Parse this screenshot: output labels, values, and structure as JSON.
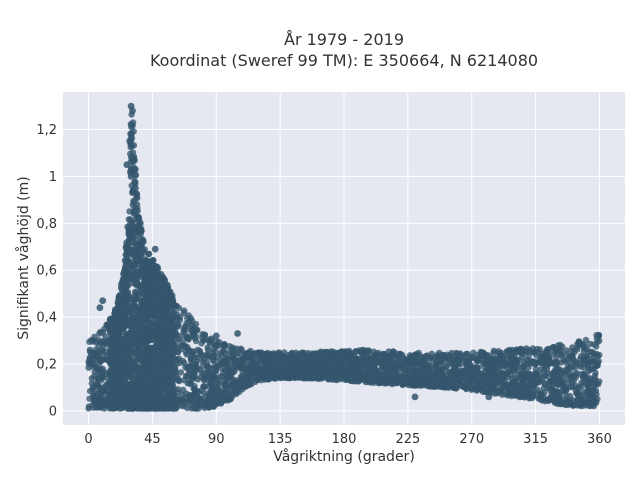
{
  "chart_data": {
    "type": "scatter",
    "title_line1": "År 1979 - 2019",
    "title_line2": "Koordinat (Sweref 99 TM): E 350664, N 6214080",
    "xlabel": "Vågriktning (grader)",
    "ylabel": "Signifikant våghöjd (m)",
    "xlim": [
      -18,
      378
    ],
    "ylim": [
      -0.06,
      1.36
    ],
    "x_ticks": [
      0,
      45,
      90,
      135,
      180,
      225,
      270,
      315,
      360
    ],
    "x_tick_labels": [
      "0",
      "45",
      "90",
      "135",
      "180",
      "225",
      "270",
      "315",
      "360"
    ],
    "y_ticks": [
      0,
      0.2,
      0.4,
      0.6,
      0.8,
      1.0,
      1.2
    ],
    "y_tick_labels": [
      "0",
      "0,2",
      "0,4",
      "0,6",
      "0,8",
      "1",
      "1,2"
    ],
    "grid": true,
    "colors": {
      "plot_bg": "#e5e8f0",
      "grid": "#ffffff",
      "marker": "#34566d"
    },
    "envelope": {
      "direction": [
        0,
        10,
        20,
        25,
        28,
        30,
        32,
        35,
        40,
        45,
        50,
        55,
        60,
        70,
        80,
        90,
        100,
        110,
        120,
        135,
        150,
        180,
        200,
        225,
        250,
        270,
        290,
        315,
        330,
        345,
        360
      ],
      "upper": [
        0.3,
        0.35,
        0.45,
        0.6,
        0.85,
        1.3,
        1.2,
        0.85,
        0.7,
        0.65,
        0.6,
        0.55,
        0.48,
        0.42,
        0.35,
        0.3,
        0.28,
        0.26,
        0.25,
        0.25,
        0.25,
        0.26,
        0.26,
        0.25,
        0.25,
        0.25,
        0.26,
        0.27,
        0.28,
        0.3,
        0.33
      ],
      "lower": [
        0.01,
        0.01,
        0.01,
        0.01,
        0.01,
        0.01,
        0.01,
        0.01,
        0.01,
        0.01,
        0.01,
        0.01,
        0.01,
        0.01,
        0.01,
        0.02,
        0.05,
        0.1,
        0.13,
        0.14,
        0.14,
        0.13,
        0.12,
        0.11,
        0.1,
        0.09,
        0.07,
        0.05,
        0.03,
        0.02,
        0.02
      ]
    },
    "outliers": [
      {
        "x": 30,
        "y": 1.3
      },
      {
        "x": 31,
        "y": 1.28
      },
      {
        "x": 29,
        "y": 1.15
      },
      {
        "x": 27,
        "y": 1.05
      },
      {
        "x": 30,
        "y": 1.0
      },
      {
        "x": 33,
        "y": 0.95
      },
      {
        "x": 47,
        "y": 0.69
      },
      {
        "x": 45,
        "y": 0.64
      },
      {
        "x": 8,
        "y": 0.44
      },
      {
        "x": 10,
        "y": 0.47
      },
      {
        "x": 90,
        "y": 0.32
      },
      {
        "x": 105,
        "y": 0.33
      },
      {
        "x": 230,
        "y": 0.06
      },
      {
        "x": 282,
        "y": 0.06
      },
      {
        "x": 330,
        "y": 0.05
      }
    ]
  }
}
